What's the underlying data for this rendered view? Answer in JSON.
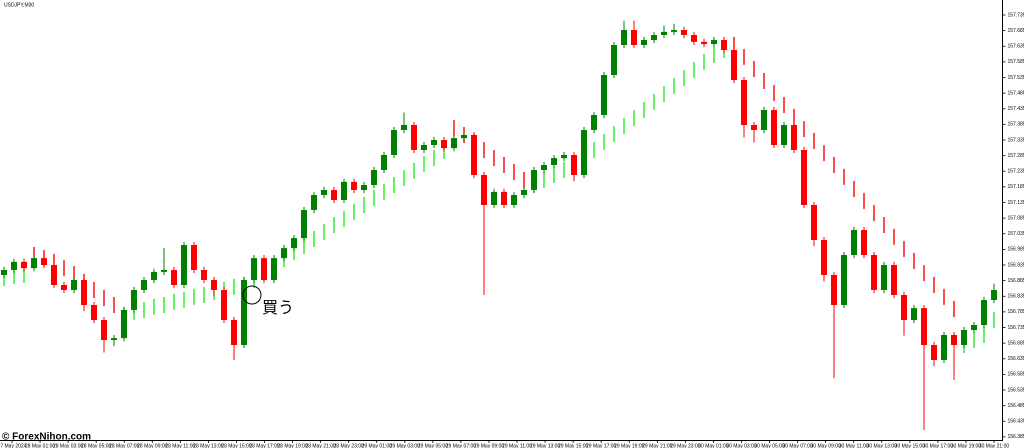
{
  "chart_data": {
    "type": "candlestick",
    "title": "USDJPY,M30",
    "annotation": "買う",
    "watermark": "© ForexNihon.com",
    "up_color": "#008000",
    "down_color": "#ff0000",
    "ylim": [
      156.375,
      157.783
    ],
    "yticks": [
      157.735,
      157.685,
      157.635,
      157.585,
      157.535,
      157.485,
      157.435,
      157.385,
      157.335,
      157.285,
      157.235,
      157.185,
      157.135,
      157.085,
      157.035,
      156.985,
      156.935,
      156.885,
      156.835,
      156.785,
      156.735,
      156.685,
      156.635,
      156.585,
      156.535,
      156.485,
      156.435,
      156.385
    ],
    "xticks": [
      "27 May 2024",
      "28 May 01:00",
      "28 May 03:00",
      "28 May 05:00",
      "28 May 07:00",
      "28 May 09:00",
      "28 May 11:00",
      "28 May 13:00",
      "28 May 15:00",
      "28 May 17:00",
      "28 May 19:00",
      "28 May 21:00",
      "28 May 23:00",
      "29 May 01:00",
      "29 May 03:00",
      "29 May 05:00",
      "29 May 07:00",
      "29 May 09:00",
      "29 May 11:00",
      "29 May 13:00",
      "29 May 15:00",
      "29 May 17:00",
      "29 May 19:00",
      "29 May 21:00",
      "29 May 23:00",
      "30 May 01:00",
      "30 May 03:00",
      "30 May 05:00",
      "30 May 07:00",
      "30 May 09:00",
      "30 May 11:00",
      "30 May 13:00",
      "30 May 15:00",
      "30 May 17:00",
      "30 May 19:00",
      "30 May 21:00"
    ],
    "open": [
      156.903,
      156.919,
      156.945,
      156.925,
      156.957,
      156.935,
      156.871,
      156.855,
      156.887,
      156.807,
      156.759,
      156.695,
      156.701,
      156.791,
      156.855,
      156.887,
      156.913,
      156.919,
      156.871,
      156.999,
      156.919,
      156.887,
      156.855,
      156.759,
      156.679,
      156.887,
      156.957,
      156.887,
      156.957,
      156.989,
      157.021,
      157.111,
      157.159,
      157.175,
      157.143,
      157.201,
      157.175,
      157.191,
      157.239,
      157.287,
      157.367,
      157.383,
      157.303,
      157.319,
      157.335,
      157.309,
      157.341,
      157.351,
      157.223,
      157.127,
      157.169,
      157.127,
      157.159,
      157.175,
      157.239,
      157.255,
      157.277,
      157.287,
      157.223,
      157.367,
      157.415,
      157.543,
      157.639,
      157.687,
      157.639,
      157.655,
      157.671,
      157.681,
      157.687,
      157.671,
      157.649,
      157.642,
      157.655,
      157.623,
      157.527,
      157.383,
      157.367,
      157.431,
      157.319,
      157.383,
      157.303,
      157.127,
      157.015,
      156.903,
      156.807,
      156.967,
      157.047,
      156.967,
      156.855,
      156.935,
      156.839,
      156.759,
      156.797,
      156.679,
      156.631,
      156.711,
      156.679,
      156.727,
      156.743,
      156.823
    ],
    "high": [
      156.929,
      156.955,
      156.955,
      156.967,
      156.967,
      156.945,
      156.881,
      156.897,
      156.897,
      156.817,
      156.769,
      156.711,
      156.801,
      156.865,
      156.897,
      156.923,
      156.989,
      156.929,
      157.009,
      157.009,
      156.929,
      156.897,
      156.865,
      156.769,
      156.897,
      156.967,
      156.967,
      156.967,
      156.999,
      157.031,
      157.121,
      157.169,
      157.185,
      157.185,
      157.211,
      157.211,
      157.201,
      157.249,
      157.297,
      157.377,
      157.423,
      157.393,
      157.329,
      157.345,
      157.345,
      157.351,
      157.361,
      157.361,
      157.233,
      157.179,
      157.179,
      157.169,
      157.185,
      157.249,
      157.265,
      157.287,
      157.297,
      157.297,
      157.377,
      157.425,
      157.553,
      157.649,
      157.717,
      157.717,
      157.665,
      157.681,
      157.701,
      157.707,
      157.697,
      157.681,
      157.659,
      157.665,
      157.665,
      157.633,
      157.537,
      157.393,
      157.441,
      157.441,
      157.393,
      157.393,
      157.313,
      157.137,
      157.025,
      156.913,
      156.977,
      157.057,
      157.057,
      156.977,
      156.945,
      156.945,
      156.849,
      156.807,
      156.807,
      156.689,
      156.721,
      156.721,
      156.737,
      156.753,
      156.833,
      156.875
    ],
    "low": [
      156.893,
      156.909,
      156.915,
      156.915,
      156.925,
      156.861,
      156.845,
      156.845,
      156.787,
      156.749,
      156.655,
      156.675,
      156.691,
      156.781,
      156.845,
      156.877,
      156.903,
      156.861,
      156.861,
      156.909,
      156.877,
      156.835,
      156.749,
      156.631,
      156.669,
      156.877,
      156.877,
      156.877,
      156.947,
      156.979,
      157.011,
      157.101,
      157.149,
      157.133,
      157.133,
      157.165,
      157.165,
      157.181,
      157.229,
      157.277,
      157.357,
      157.293,
      157.293,
      157.309,
      157.299,
      157.299,
      157.331,
      157.213,
      156.839,
      157.117,
      157.117,
      157.117,
      157.149,
      157.165,
      157.229,
      157.245,
      157.267,
      157.203,
      157.213,
      157.357,
      157.405,
      157.533,
      157.629,
      157.629,
      157.629,
      157.645,
      157.661,
      157.671,
      157.661,
      157.639,
      157.632,
      157.632,
      157.613,
      157.517,
      157.343,
      157.327,
      157.357,
      157.309,
      157.309,
      157.293,
      157.117,
      156.995,
      156.883,
      156.573,
      156.797,
      156.957,
      156.957,
      156.845,
      156.845,
      156.829,
      156.709,
      156.749,
      156.407,
      156.611,
      156.621,
      156.567,
      156.669,
      156.717,
      156.733,
      156.813
    ],
    "close": [
      156.919,
      156.945,
      156.925,
      156.957,
      156.935,
      156.871,
      156.855,
      156.887,
      156.807,
      156.759,
      156.695,
      156.701,
      156.791,
      156.855,
      156.887,
      156.913,
      156.919,
      156.871,
      156.999,
      156.919,
      156.887,
      156.855,
      156.759,
      156.679,
      156.887,
      156.957,
      156.887,
      156.957,
      156.989,
      157.021,
      157.111,
      157.159,
      157.175,
      157.143,
      157.201,
      157.175,
      157.191,
      157.239,
      157.287,
      157.367,
      157.383,
      157.303,
      157.319,
      157.335,
      157.309,
      157.341,
      157.351,
      157.223,
      157.127,
      157.169,
      157.127,
      157.159,
      157.175,
      157.239,
      157.255,
      157.277,
      157.287,
      157.223,
      157.367,
      157.415,
      157.543,
      157.639,
      157.687,
      157.639,
      157.655,
      157.671,
      157.681,
      157.687,
      157.671,
      157.649,
      157.642,
      157.655,
      157.623,
      157.527,
      157.383,
      157.367,
      157.431,
      157.319,
      157.383,
      157.303,
      157.127,
      157.015,
      156.903,
      156.807,
      156.967,
      157.047,
      156.967,
      156.855,
      156.935,
      156.839,
      156.759,
      156.797,
      156.679,
      156.631,
      156.711,
      156.679,
      156.727,
      156.743,
      156.823,
      156.855
    ],
    "indicator": {
      "up_color": "#22ee22",
      "down_color": "#ff0000",
      "up": [
        156.893,
        156.9,
        156.903,
        null,
        null,
        null,
        null,
        null,
        null,
        null,
        null,
        null,
        156.775,
        156.785,
        156.791,
        156.801,
        156.807,
        156.817,
        156.823,
        156.833,
        156.839,
        156.849,
        156.855,
        156.865,
        156.871,
        156.887,
        156.909,
        156.932,
        156.954,
        156.977,
        156.996,
        157.018,
        157.041,
        157.063,
        157.082,
        157.105,
        157.127,
        157.149,
        157.169,
        157.191,
        157.213,
        157.236,
        157.258,
        157.277,
        157.3,
        null,
        null,
        null,
        null,
        null,
        null,
        null,
        null,
        157.191,
        157.207,
        157.223,
        157.239,
        157.255,
        157.277,
        157.303,
        157.329,
        157.354,
        157.38,
        157.405,
        157.431,
        157.457,
        157.482,
        157.508,
        157.533,
        157.559,
        157.585,
        157.607,
        157.623,
        null,
        null,
        null,
        null,
        null,
        null,
        null,
        null,
        null,
        null,
        null,
        null,
        null,
        null,
        null,
        null,
        null,
        null,
        null,
        null,
        null,
        null,
        null,
        156.679,
        156.695,
        156.711,
        156.759
      ],
      "down": [
        null,
        null,
        null,
        156.967,
        156.957,
        156.945,
        156.925,
        156.906,
        156.881,
        156.855,
        156.829,
        156.807,
        null,
        null,
        null,
        null,
        null,
        null,
        null,
        null,
        null,
        null,
        null,
        null,
        null,
        null,
        null,
        null,
        null,
        null,
        null,
        null,
        null,
        null,
        null,
        null,
        null,
        null,
        null,
        null,
        null,
        null,
        null,
        null,
        null,
        157.373,
        157.351,
        157.329,
        157.303,
        157.277,
        157.255,
        157.233,
        157.207,
        null,
        null,
        null,
        null,
        null,
        null,
        null,
        null,
        null,
        null,
        null,
        null,
        null,
        null,
        null,
        null,
        null,
        null,
        null,
        null,
        157.639,
        157.601,
        157.562,
        157.524,
        157.485,
        157.447,
        157.409,
        157.37,
        157.332,
        157.293,
        157.255,
        157.217,
        157.178,
        157.14,
        157.101,
        157.063,
        157.025,
        156.986,
        156.948,
        156.909,
        156.871,
        156.833,
        156.794,
        null,
        null,
        null,
        null
      ]
    }
  }
}
